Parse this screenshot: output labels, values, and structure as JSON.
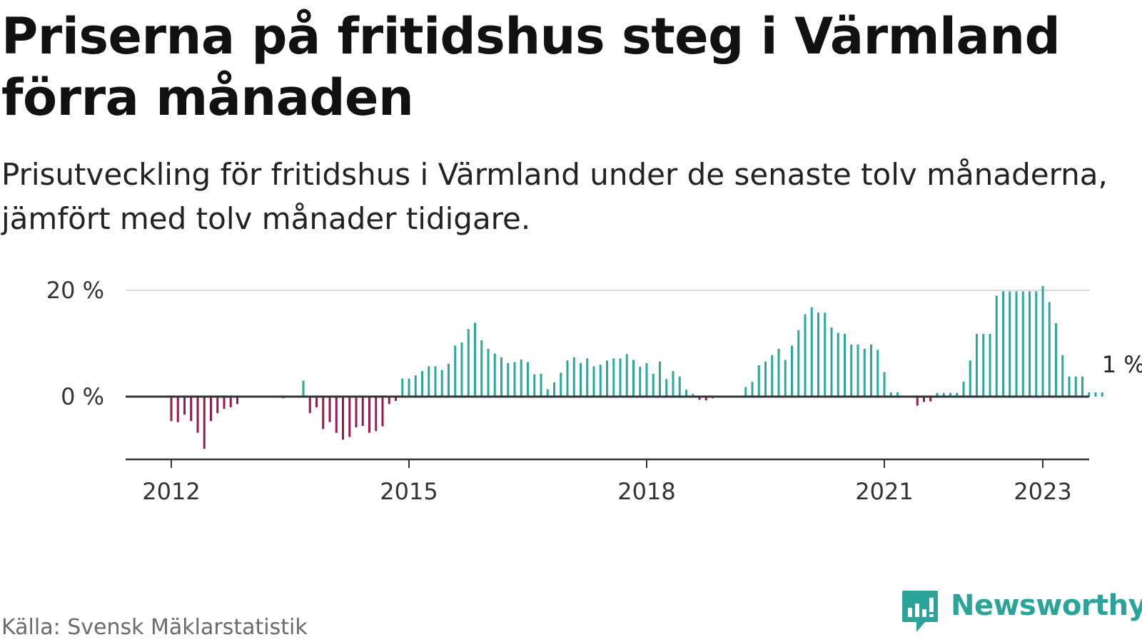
{
  "title": "Priserna på fritidshus steg i Värmland förra månaden",
  "subtitle": "Prisutveckling för fritidshus i Värmland under de senaste tolv månaderna, jämfört med tolv månader tidigare.",
  "source": "Källa: Svensk Mäklarstatistik",
  "brand": "Newsworthy",
  "colors": {
    "positive": "#27a99c",
    "negative": "#9c1650",
    "grid": "#d9d9d9",
    "axis": "#333333",
    "brand": "#2aa398"
  },
  "chart_data": {
    "type": "bar",
    "title": "Priserna på fritidshus steg i Värmland förra månaden",
    "ylabel": "",
    "xlabel": "",
    "ylim": [
      -11,
      20
    ],
    "grid": true,
    "yticks": [
      {
        "value": 0,
        "label": "0 %"
      },
      {
        "value": 20,
        "label": "20 %"
      }
    ],
    "xticks": [
      "2012",
      "2015",
      "2018",
      "2021",
      "2023"
    ],
    "last_value_label": "1 %",
    "series": [
      {
        "start": "2012-01",
        "values": [
          -4.6,
          -4.8,
          -3.4,
          -4.6,
          -6.8,
          -9.8,
          -4.6,
          -3.1,
          -2.3,
          -2.0,
          -1.4,
          null,
          null,
          null,
          null,
          null,
          null,
          -0.3,
          null,
          -0.2,
          3.0,
          -3.1,
          -2.0,
          -6.1,
          -4.8,
          -6.8,
          -8.1,
          -7.6,
          -5.8,
          -5.5,
          -6.8,
          -6.5,
          -5.6,
          -1.4,
          -0.8,
          3.4,
          3.4,
          4.0,
          4.8,
          5.7,
          5.7,
          5.0,
          6.2,
          9.6,
          10.2,
          12.7,
          13.9,
          10.6,
          9.0,
          8.1,
          7.4,
          6.3,
          6.5,
          7.0,
          6.5,
          4.2,
          4.3,
          1.4,
          2.7,
          4.5,
          6.8,
          7.4,
          6.3,
          7.2,
          5.7,
          6.0,
          6.8,
          7.2,
          7.2,
          8.0,
          6.9,
          5.6,
          6.3,
          4.3,
          6.6,
          3.3,
          4.8,
          3.8,
          1.3,
          0.5,
          -0.6,
          -0.7,
          -0.3,
          null,
          null,
          null,
          null,
          1.8,
          2.8,
          5.9,
          6.6,
          7.8,
          9.0,
          6.9,
          9.6,
          12.5,
          15.5,
          16.8,
          15.8,
          15.8,
          13.0,
          12.0,
          11.8,
          9.8,
          9.8,
          9.0,
          9.8,
          8.8,
          4.6,
          0.8,
          0.8,
          null,
          null,
          -1.7,
          -1.0,
          -0.9,
          0.7,
          0.7,
          0.7,
          0.7,
          2.8,
          6.8,
          11.8,
          11.8,
          11.8,
          19.0,
          19.8,
          19.8,
          19.8,
          19.8,
          19.8,
          19.8,
          20.8,
          17.8,
          13.8,
          7.8,
          3.8,
          3.8,
          3.8,
          0.8,
          0.8,
          0.8
        ]
      }
    ]
  }
}
